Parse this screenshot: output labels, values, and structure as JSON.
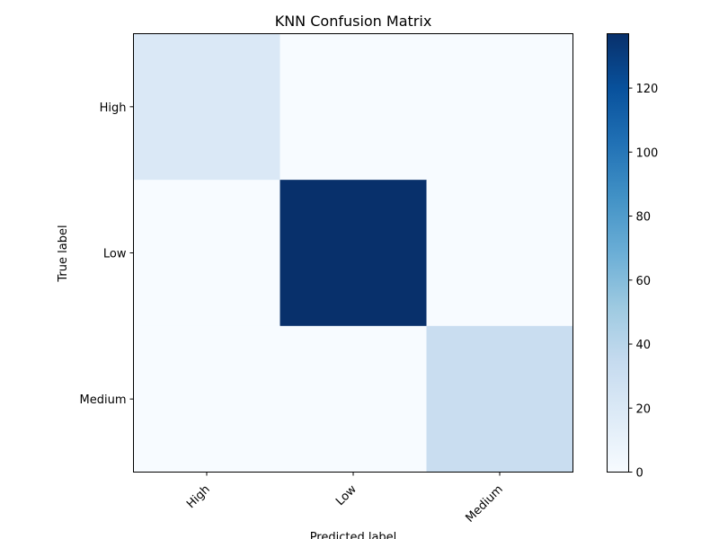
{
  "chart_data": {
    "type": "heatmap",
    "title": "KNN Confusion Matrix",
    "xlabel": "Predicted label",
    "ylabel": "True label",
    "x_categories": [
      "High",
      "Low",
      "Medium"
    ],
    "y_categories": [
      "High",
      "Low",
      "Medium"
    ],
    "values": [
      [
        20,
        0,
        0
      ],
      [
        0,
        137,
        0
      ],
      [
        0,
        0,
        32
      ]
    ],
    "colormap": "Blues",
    "colorbar": {
      "min": 0,
      "max": 137,
      "ticks": [
        0,
        20,
        40,
        60,
        80,
        100,
        120
      ]
    }
  }
}
